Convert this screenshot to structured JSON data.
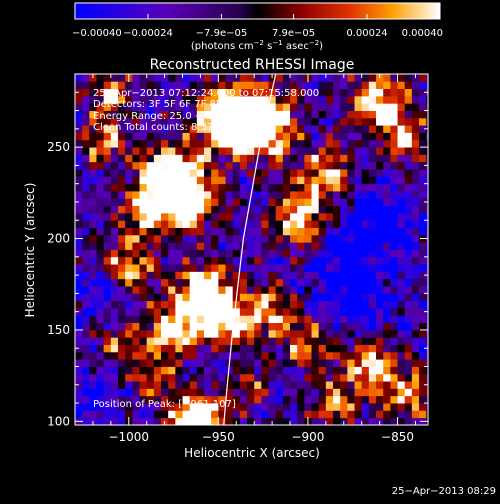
{
  "chart_data": {
    "type": "heatmap",
    "title": "Reconstructed RHESSI Image",
    "xlabel": "Heliocentric X (arcsec)",
    "ylabel": "Heliocentric Y (arcsec)",
    "xlim": [
      -1030,
      -833
    ],
    "ylim": [
      98,
      290
    ],
    "x_ticks": [
      -1000,
      -950,
      -900,
      -850
    ],
    "x_tick_labels": [
      "−1000",
      "−950",
      "−900",
      "−850"
    ],
    "y_ticks": [
      100,
      150,
      200,
      250
    ],
    "y_tick_labels": [
      "100",
      "150",
      "200",
      "250"
    ],
    "colorbar": {
      "range": [
        -0.0004,
        0.0004
      ],
      "ticks": [
        -0.0004,
        -0.00024,
        -7.9e-05,
        7.9e-05,
        0.00024,
        0.0004
      ],
      "tick_labels": [
        "−0.00040",
        "−0.00024",
        "−7.9e−05",
        "7.9e−05",
        "0.00024",
        "0.00040"
      ],
      "units_parts": [
        "(photons cm",
        "−2",
        " s",
        "−1",
        " asec",
        "−2",
        ")"
      ]
    },
    "annotations": [
      "25−Apr−2013 07:12:24.000 to 07:15:58.000",
      "Detectors: 3F 5F 6F 7F 8F 9F, Att 0",
      "Energy Range: 25.0 − 50.0 keV",
      "Clean     Total counts: 8.37E+03"
    ],
    "peak_label": "Position of Peak: [−961,107]",
    "peak": [
      -961,
      107
    ],
    "limb_curve": [
      [
        -947,
        98
      ],
      [
        -945,
        120
      ],
      [
        -942,
        150
      ],
      [
        -936,
        200
      ],
      [
        -927,
        250
      ],
      [
        -918,
        290
      ]
    ],
    "blobs": [
      {
        "x": -962,
        "y": 100,
        "w": 2.6,
        "r": 10
      },
      {
        "x": -945,
        "y": 265,
        "w": 2.1,
        "r": 12
      },
      {
        "x": -925,
        "y": 262,
        "w": 1.9,
        "r": 13
      },
      {
        "x": -978,
        "y": 235,
        "w": 1.7,
        "r": 12
      },
      {
        "x": -965,
        "y": 222,
        "w": 1.6,
        "r": 11
      },
      {
        "x": -990,
        "y": 215,
        "w": 1.4,
        "r": 10
      },
      {
        "x": -905,
        "y": 210,
        "w": 1.5,
        "r": 11
      },
      {
        "x": -890,
        "y": 235,
        "w": 1.3,
        "r": 10
      },
      {
        "x": -958,
        "y": 170,
        "w": 2.0,
        "r": 11
      },
      {
        "x": -945,
        "y": 155,
        "w": 1.6,
        "r": 9
      },
      {
        "x": -975,
        "y": 150,
        "w": 1.4,
        "r": 10
      },
      {
        "x": -1000,
        "y": 185,
        "w": 1.2,
        "r": 10
      },
      {
        "x": -1015,
        "y": 255,
        "w": 1.2,
        "r": 9
      },
      {
        "x": -920,
        "y": 160,
        "w": 1.3,
        "r": 10
      },
      {
        "x": -900,
        "y": 140,
        "w": 1.1,
        "r": 9
      },
      {
        "x": -860,
        "y": 275,
        "w": 1.6,
        "r": 11
      },
      {
        "x": -845,
        "y": 255,
        "w": 1.2,
        "r": 9
      },
      {
        "x": -865,
        "y": 130,
        "w": 1.3,
        "r": 10
      },
      {
        "x": -845,
        "y": 115,
        "w": 1.2,
        "r": 10
      },
      {
        "x": -885,
        "y": 110,
        "w": 1.1,
        "r": 9
      },
      {
        "x": -1005,
        "y": 140,
        "w": 0.9,
        "r": 9
      },
      {
        "x": -1010,
        "y": 280,
        "w": 1.1,
        "r": 8
      },
      {
        "x": -985,
        "y": 125,
        "w": 0.9,
        "r": 9
      },
      {
        "x": -930,
        "y": 120,
        "w": 0.8,
        "r": 8
      },
      {
        "x": -880,
        "y": 185,
        "w": -0.8,
        "r": 14
      },
      {
        "x": -860,
        "y": 210,
        "w": -0.9,
        "r": 13
      },
      {
        "x": -870,
        "y": 165,
        "w": -0.6,
        "r": 10
      },
      {
        "x": -1015,
        "y": 170,
        "w": -0.6,
        "r": 10
      },
      {
        "x": -1020,
        "y": 110,
        "w": -0.5,
        "r": 10
      }
    ]
  },
  "footer": {
    "timestamp": "25−Apr−2013 08:29"
  }
}
